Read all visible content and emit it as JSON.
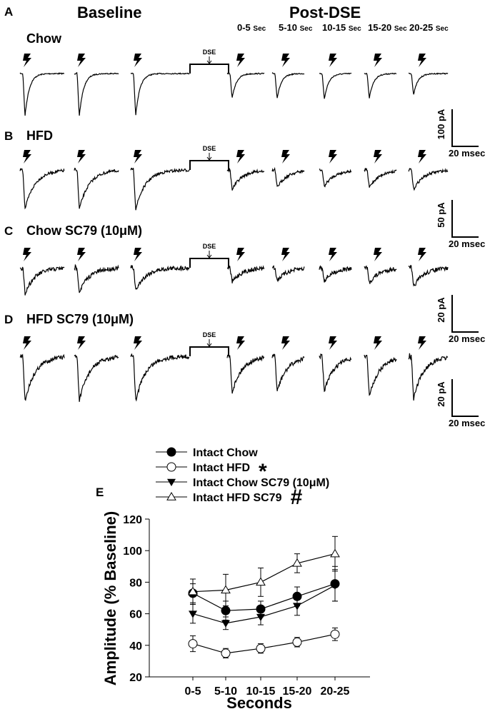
{
  "header": {
    "baseline": "Baseline",
    "post_dse": "Post-DSE",
    "bins": [
      {
        "range": "0-5",
        "unit": "Sec"
      },
      {
        "range": "5-10",
        "unit": "Sec"
      },
      {
        "range": "10-15",
        "unit": "Sec"
      },
      {
        "range": "15-20",
        "unit": "Sec"
      },
      {
        "range": "20-25",
        "unit": "Sec"
      }
    ]
  },
  "panels": [
    {
      "letter": "A",
      "title": "Chow",
      "dse": "DSE",
      "scale_y": "100 pA",
      "scale_x": "20 msec",
      "pre": [
        1.0,
        1.0,
        0.98
      ],
      "post": [
        0.58,
        0.58,
        0.6,
        0.58,
        0.5
      ]
    },
    {
      "letter": "B",
      "title": "HFD",
      "dse": "DSE",
      "scale_y": "50 pA",
      "scale_x": "20 msec",
      "pre": [
        1.0,
        1.0,
        1.0
      ],
      "post": [
        0.5,
        0.45,
        0.42,
        0.45,
        0.5
      ]
    },
    {
      "letter": "C",
      "title": "Chow SC79 (10μM)",
      "dse": "DSE",
      "scale_y": "20 pA",
      "scale_x": "20 msec",
      "pre": [
        1.0,
        0.95,
        0.9
      ],
      "post": [
        0.55,
        0.5,
        0.5,
        0.6,
        0.75
      ]
    },
    {
      "letter": "D",
      "title": "HFD SC79 (10μM)",
      "dse": "DSE",
      "scale_y": "20 pA",
      "scale_x": "20 msec",
      "pre": [
        1.0,
        1.0,
        1.0
      ],
      "post": [
        0.8,
        0.78,
        0.78,
        0.9,
        0.95
      ]
    }
  ],
  "chart_data": {
    "type": "line",
    "panel_letter": "E",
    "title": "",
    "xlabel": "Seconds",
    "ylabel": "Amplitude (% Baseline)",
    "categories": [
      "0-5",
      "5-10",
      "10-15",
      "15-20",
      "20-25"
    ],
    "ylim": [
      20,
      120
    ],
    "yticks": [
      20,
      40,
      60,
      80,
      100,
      120
    ],
    "legend_position": "top",
    "series": [
      {
        "name": "Intact Chow",
        "marker": "circle-filled",
        "mark": "",
        "values": [
          73,
          62,
          63,
          71,
          79
        ],
        "errors": [
          6,
          6,
          5,
          6,
          11
        ]
      },
      {
        "name": "Intact HFD",
        "marker": "circle-open",
        "mark": "*",
        "values": [
          41,
          35,
          38,
          42,
          47
        ],
        "errors": [
          5,
          3,
          3,
          3,
          4
        ]
      },
      {
        "name": "Intact Chow SC79 (10μM)",
        "marker": "triangle-down-filled",
        "mark": "",
        "values": [
          60,
          54,
          58,
          65,
          78
        ],
        "errors": [
          6,
          4,
          5,
          6,
          10
        ]
      },
      {
        "name": "Intact HFD SC79",
        "marker": "triangle-up-open",
        "mark": "#",
        "values": [
          74,
          75,
          80,
          92,
          98
        ],
        "errors": [
          8,
          10,
          9,
          6,
          11
        ]
      }
    ]
  }
}
